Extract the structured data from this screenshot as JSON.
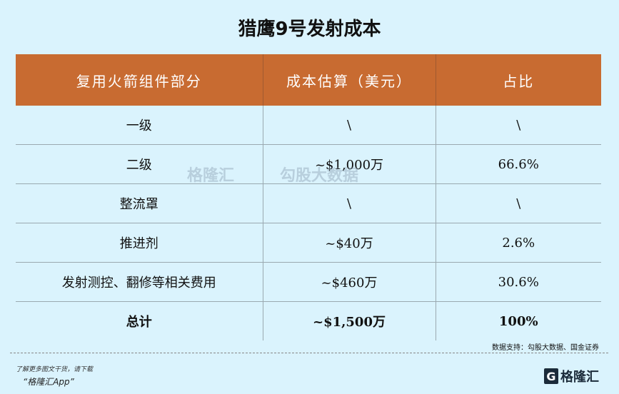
{
  "title": "猎鹰9号发射成本",
  "table": {
    "headers": [
      "复用火箭组件部分",
      "成本估算（美元）",
      "占比"
    ],
    "rows": [
      [
        "一级",
        "\\",
        "\\"
      ],
      [
        "二级",
        "~$1,000万",
        "66.6%"
      ],
      [
        "整流罩",
        "\\",
        "\\"
      ],
      [
        "推进剂",
        "~$40万",
        "2.6%"
      ],
      [
        "发射测控、翻修等相关费用",
        "~$460万",
        "30.6%"
      ],
      [
        "总计",
        "~$1,500万",
        "100%"
      ]
    ]
  },
  "watermark": {
    "brand": "格隆汇",
    "partner": "勾股大数据"
  },
  "source": "数据支持：勾股大数据、国金证券",
  "footer": {
    "promo_line1": "了解更多图文干货，请下载",
    "promo_line2": "“格隆汇App”",
    "logo_text": "格隆汇",
    "logo_letter": "G"
  },
  "colors": {
    "header_bg": "#c86b31",
    "background": "#daf3fd"
  }
}
